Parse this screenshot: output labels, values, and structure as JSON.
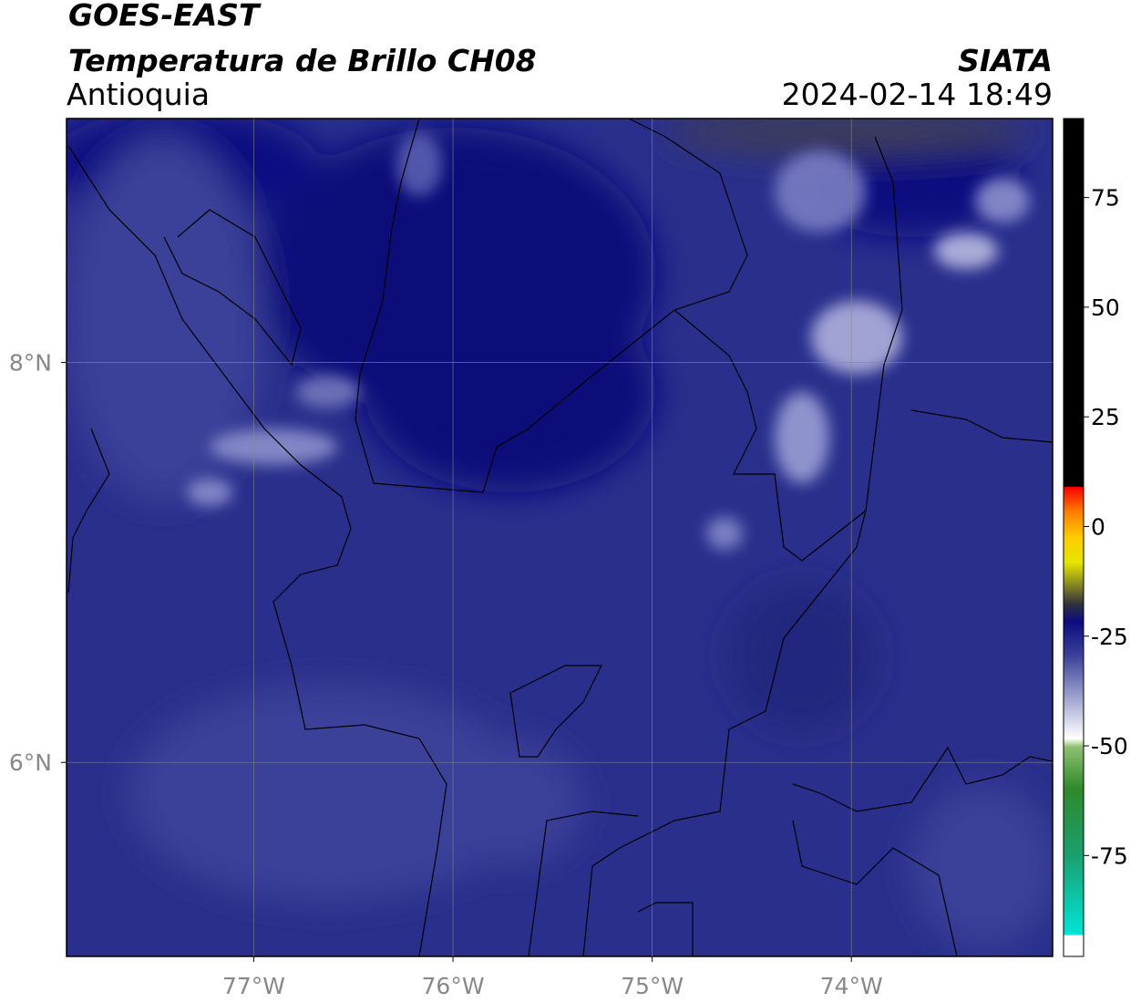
{
  "header": {
    "source": "GOES-EAST",
    "title": "Temperatura de Brillo CH08",
    "region": "Antioquia",
    "agency": "SIATA",
    "datetime": "2024-02-14 18:49"
  },
  "map": {
    "xlim": [
      -77.94,
      -72.99
    ],
    "ylim": [
      5.03,
      9.22
    ],
    "xticks": [
      {
        "value": -77,
        "label": "77°W"
      },
      {
        "value": -76,
        "label": "76°W"
      },
      {
        "value": -75,
        "label": "75°W"
      },
      {
        "value": -74,
        "label": "74°W"
      }
    ],
    "yticks": [
      {
        "value": 6,
        "label": "6°N"
      },
      {
        "value": 8,
        "label": "8°N"
      }
    ],
    "grid": true
  },
  "colorbar": {
    "ylim": [
      -98,
      93
    ],
    "yticks": [
      75,
      50,
      25,
      0,
      -25,
      -50,
      -75
    ]
  }
}
